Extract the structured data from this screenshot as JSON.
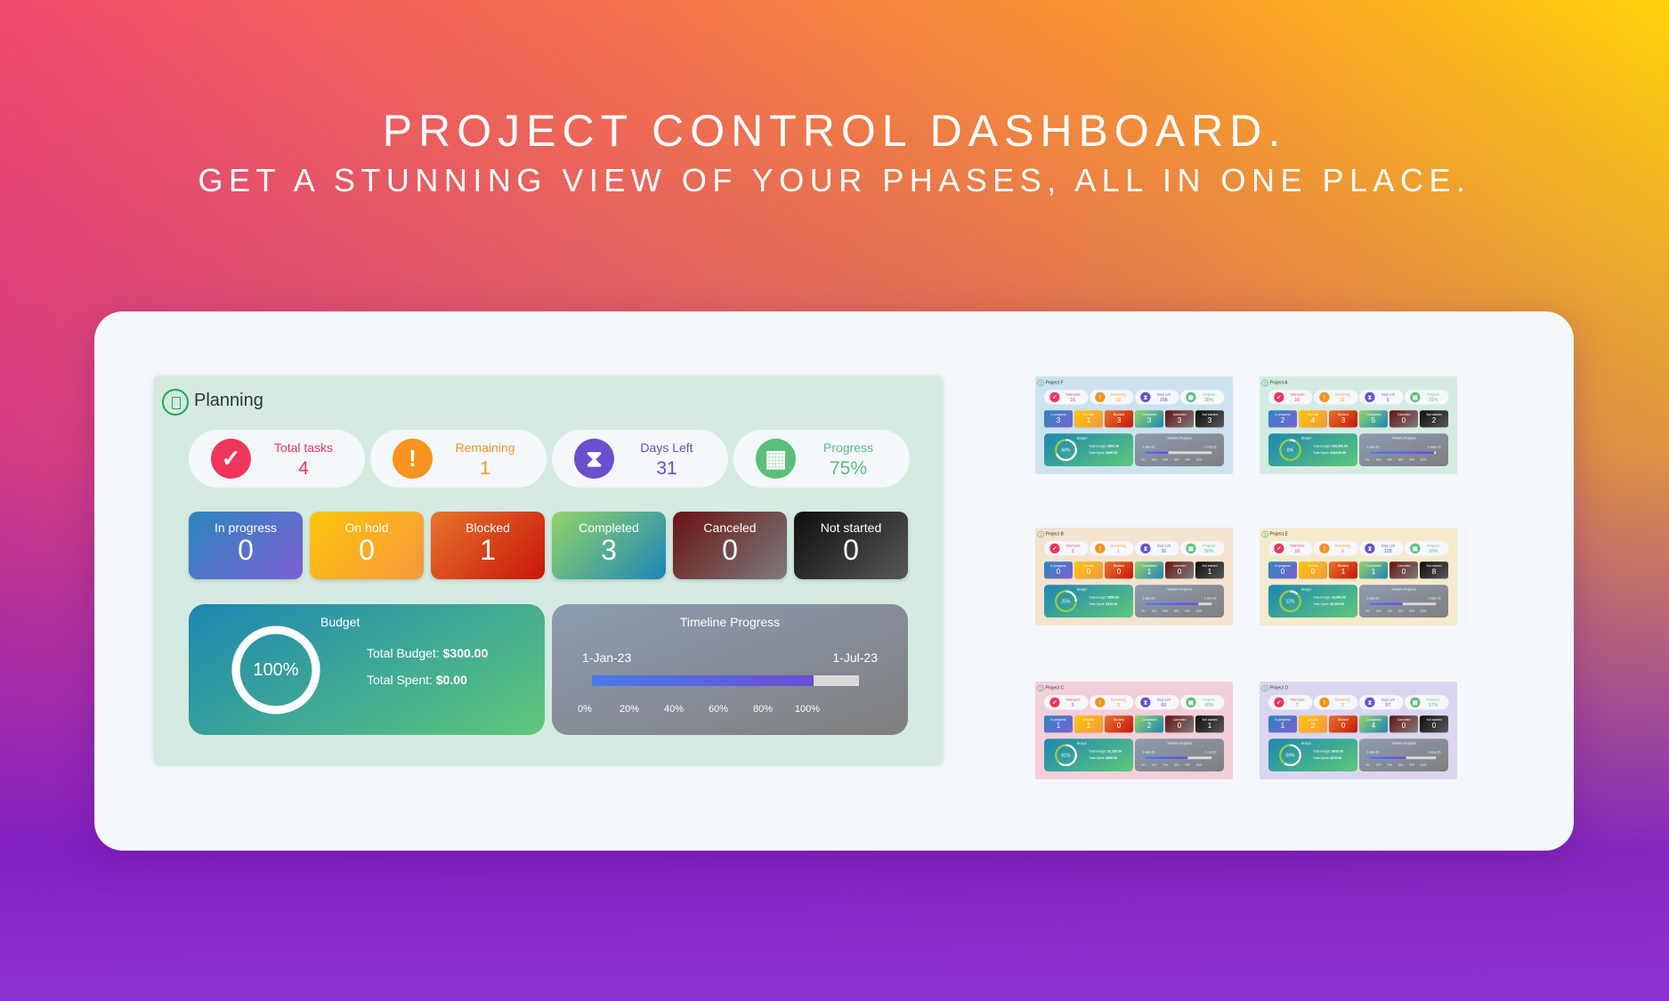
{
  "hero": {
    "title": "PROJECT CONTROL DASHBOARD.",
    "subtitle": "GET A STUNNING VIEW OF YOUR PHASES, ALL IN ONE PLACE."
  },
  "colors": {
    "red": "#f0365a",
    "orange": "#f7931e",
    "purple": "#6a4fcf",
    "green": "#5bbf7a",
    "ring_rest": "#9ccc3c"
  },
  "main": {
    "title": "Planning",
    "bg": "#d5ebe1",
    "stats": [
      {
        "label": "Total tasks",
        "value": "4",
        "icon": "check-icon"
      },
      {
        "label": "Remaining",
        "value": "1",
        "icon": "exclamation-icon"
      },
      {
        "label": "Days Left",
        "value": "31",
        "icon": "hourglass-icon"
      },
      {
        "label": "Progress",
        "value": "75%",
        "icon": "brick-wall-icon"
      }
    ],
    "statuses": [
      {
        "label": "In progress",
        "value": "0"
      },
      {
        "label": "On hold",
        "value": "0"
      },
      {
        "label": "Blocked",
        "value": "1"
      },
      {
        "label": "Completed",
        "value": "3"
      },
      {
        "label": "Canceled",
        "value": "0"
      },
      {
        "label": "Not started",
        "value": "0"
      }
    ],
    "budget": {
      "title": "Budget",
      "pct": "100%",
      "ring": 1.0,
      "total_budget_label": "Total Budget:",
      "total_budget": "$300.00",
      "total_spent_label": "Total Spent:",
      "total_spent": "$0.00"
    },
    "timeline": {
      "title": "Timeline Progress",
      "start": "1-Jan-23",
      "end": "1-Jul-23",
      "progress": 0.83,
      "ticks": [
        "0%",
        "20%",
        "40%",
        "60%",
        "80%",
        "100%"
      ]
    }
  },
  "thumbnails": [
    {
      "title": "Project F",
      "bg": "#cde2ee",
      "stats": [
        {
          "label": "Total tasks",
          "value": "16"
        },
        {
          "label": "Remaining",
          "value": "10"
        },
        {
          "label": "Days Left",
          "value": "158"
        },
        {
          "label": "Progress",
          "value": "38%"
        }
      ],
      "statuses": [
        {
          "label": "In progress",
          "value": "3"
        },
        {
          "label": "On hold",
          "value": "1"
        },
        {
          "label": "Blocked",
          "value": "3"
        },
        {
          "label": "Completed",
          "value": "3"
        },
        {
          "label": "Canceled",
          "value": "3"
        },
        {
          "label": "Not started",
          "value": "3"
        }
      ],
      "budget": {
        "title": "Budget",
        "pct": "68%",
        "ring": 0.68,
        "total_budget_label": "Total Budget:",
        "total_budget": "$500.00",
        "total_spent_label": "Total Spent:",
        "total_spent": "$160.00"
      },
      "timeline": {
        "title": "Timeline Progress",
        "start": "1-Jan-23",
        "end": "1-Oct-23",
        "progress": 0.35,
        "ticks": [
          "0%",
          "20%",
          "40%",
          "60%",
          "80%",
          "100%"
        ]
      }
    },
    {
      "title": "Project A",
      "bg": "#d5ebe1",
      "stats": [
        {
          "label": "Total tasks",
          "value": "16"
        },
        {
          "label": "Remaining",
          "value": "11"
        },
        {
          "label": "Days Left",
          "value": "5"
        },
        {
          "label": "Progress",
          "value": "31%"
        }
      ],
      "statuses": [
        {
          "label": "In progress",
          "value": "2"
        },
        {
          "label": "On hold",
          "value": "4"
        },
        {
          "label": "Blocked",
          "value": "3"
        },
        {
          "label": "Completed",
          "value": "5"
        },
        {
          "label": "Canceled",
          "value": "0"
        },
        {
          "label": "Not started",
          "value": "2"
        }
      ],
      "budget": {
        "title": "Budget",
        "pct": "8%",
        "ring": 0.08,
        "total_budget_label": "Total Budget:",
        "total_budget": "$16,950.00",
        "total_spent_label": "Total Spent:",
        "total_spent": "$15,510.00"
      },
      "timeline": {
        "title": "Timeline Progress",
        "start": "1-Jan-23",
        "end": "1-May-23",
        "progress": 0.97,
        "ticks": [
          "0%",
          "20%",
          "40%",
          "60%",
          "80%",
          "100%"
        ]
      }
    },
    {
      "title": "Project B",
      "bg": "#f3e3cf",
      "stats": [
        {
          "label": "Total tasks",
          "value": "2"
        },
        {
          "label": "Remaining",
          "value": "1"
        },
        {
          "label": "Days Left",
          "value": "36"
        },
        {
          "label": "Progress",
          "value": "50%"
        }
      ],
      "statuses": [
        {
          "label": "In progress",
          "value": "0"
        },
        {
          "label": "On hold",
          "value": "0"
        },
        {
          "label": "Blocked",
          "value": "0"
        },
        {
          "label": "Completed",
          "value": "1"
        },
        {
          "label": "Canceled",
          "value": "0"
        },
        {
          "label": "Not started",
          "value": "1"
        }
      ],
      "budget": {
        "title": "Budget",
        "pct": "25%",
        "ring": 0.25,
        "total_budget_label": "Total Budget:",
        "total_budget": "$550.00",
        "total_spent_label": "Total Spent:",
        "total_spent": "$410.00"
      },
      "timeline": {
        "title": "Timeline Progress",
        "start": "1-Jan-23",
        "end": "1-Jun-23",
        "progress": 0.8,
        "ticks": [
          "0%",
          "20%",
          "40%",
          "60%",
          "80%",
          "100%"
        ]
      }
    },
    {
      "title": "Project E",
      "bg": "#f5eacb",
      "stats": [
        {
          "label": "Total tasks",
          "value": "10"
        },
        {
          "label": "Remaining",
          "value": "9"
        },
        {
          "label": "Days Left",
          "value": "128"
        },
        {
          "label": "Progress",
          "value": "10%"
        }
      ],
      "statuses": [
        {
          "label": "In progress",
          "value": "0"
        },
        {
          "label": "On hold",
          "value": "0"
        },
        {
          "label": "Blocked",
          "value": "1"
        },
        {
          "label": "Completed",
          "value": "1"
        },
        {
          "label": "Canceled",
          "value": "0"
        },
        {
          "label": "Not started",
          "value": "8"
        }
      ],
      "budget": {
        "title": "Budget",
        "pct": "12%",
        "ring": 0.12,
        "total_budget_label": "Total Budget:",
        "total_budget": "$3,800.00",
        "total_spent_label": "Total Spent:",
        "total_spent": "$3,325.00"
      },
      "timeline": {
        "title": "Timeline Progress",
        "start": "1-Jan-23",
        "end": "1-Sep-23",
        "progress": 0.5,
        "ticks": [
          "0%",
          "20%",
          "40%",
          "60%",
          "80%",
          "100%"
        ]
      }
    },
    {
      "title": "Project C",
      "bg": "#f2cfd9",
      "stats": [
        {
          "label": "Total tasks",
          "value": "5"
        },
        {
          "label": "Remaining",
          "value": "3"
        },
        {
          "label": "Days Left",
          "value": "66"
        },
        {
          "label": "Progress",
          "value": "40%"
        }
      ],
      "statuses": [
        {
          "label": "In progress",
          "value": "1"
        },
        {
          "label": "On hold",
          "value": "1"
        },
        {
          "label": "Blocked",
          "value": "0"
        },
        {
          "label": "Completed",
          "value": "2"
        },
        {
          "label": "Canceled",
          "value": "0"
        },
        {
          "label": "Not started",
          "value": "1"
        }
      ],
      "budget": {
        "title": "Budget",
        "pct": "61%",
        "ring": 0.61,
        "total_budget_label": "Total Budget:",
        "total_budget": "$1,350.00",
        "total_spent_label": "Total Spent:",
        "total_spent": "$520.00"
      },
      "timeline": {
        "title": "Timeline Progress",
        "start": "1-Jan-23",
        "end": "1-Jul-23",
        "progress": 0.64,
        "ticks": [
          "0%",
          "20%",
          "40%",
          "60%",
          "80%",
          "100%"
        ]
      }
    },
    {
      "title": "Project D",
      "bg": "#dcd5f0",
      "stats": [
        {
          "label": "Total tasks",
          "value": "7"
        },
        {
          "label": "Remaining",
          "value": "3"
        },
        {
          "label": "Days Left",
          "value": "97"
        },
        {
          "label": "Progress",
          "value": "57%"
        }
      ],
      "statuses": [
        {
          "label": "In progress",
          "value": "1"
        },
        {
          "label": "On hold",
          "value": "2"
        },
        {
          "label": "Blocked",
          "value": "0"
        },
        {
          "label": "Completed",
          "value": "4"
        },
        {
          "label": "Canceled",
          "value": "0"
        },
        {
          "label": "Not started",
          "value": "0"
        }
      ],
      "budget": {
        "title": "Budget",
        "pct": "59%",
        "ring": 0.59,
        "total_budget_label": "Total Budget:",
        "total_budget": "$410.00",
        "total_spent_label": "Total Spent:",
        "total_spent": "$170.00"
      },
      "timeline": {
        "title": "Timeline Progress",
        "start": "1-Jan-23",
        "end": "1-Aug-23",
        "progress": 0.55,
        "ticks": [
          "0%",
          "20%",
          "40%",
          "60%",
          "80%",
          "100%"
        ]
      }
    }
  ]
}
